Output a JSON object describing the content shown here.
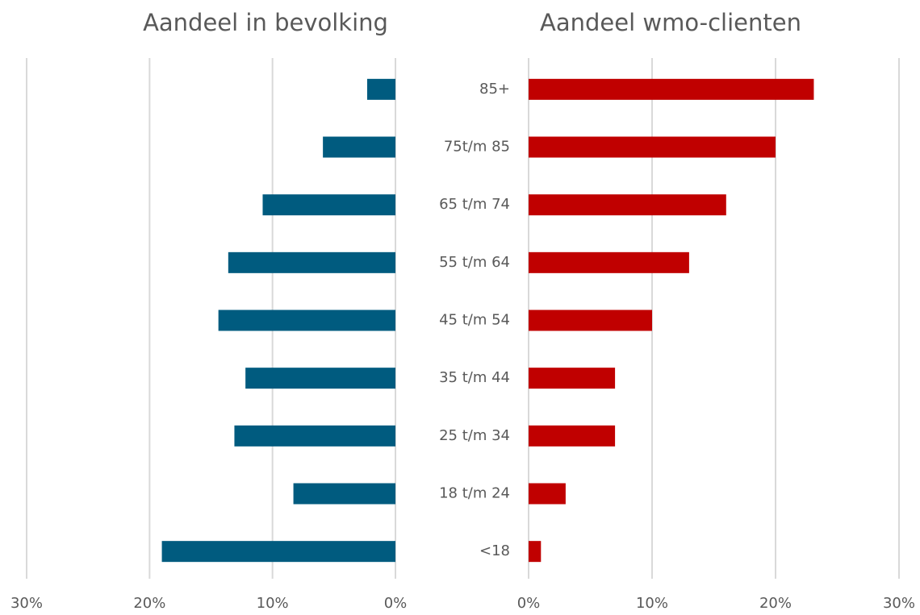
{
  "chart_data": [
    {
      "type": "bar",
      "orientation": "horizontal",
      "title": "Aandeel in bevolking",
      "values": [
        2.3,
        5.9,
        10.8,
        13.6,
        14.4,
        12.2,
        13.1,
        8.3,
        19.0
      ],
      "color": "#005b7f",
      "xlim": [
        30,
        0
      ],
      "xticks": [
        {
          "value": 30,
          "label": "30%"
        },
        {
          "value": 20,
          "label": "20%"
        },
        {
          "value": 10,
          "label": "10%"
        },
        {
          "value": 0,
          "label": "0%"
        }
      ],
      "grid": true
    },
    {
      "type": "bar",
      "orientation": "horizontal",
      "title": "Aandeel wmo-clienten",
      "categories": [
        "85+",
        "75t/m 85",
        "65 t/m 74",
        "55 t/m 64",
        "45 t/m 54",
        "35 t/m 44",
        "25 t/m 34",
        "18 t/m 24",
        "<18"
      ],
      "values": [
        23.1,
        20.0,
        16.0,
        13.0,
        10.0,
        7.0,
        7.0,
        3.0,
        1.0
      ],
      "color": "#c00000",
      "xlim": [
        0,
        30
      ],
      "xticks": [
        {
          "value": 0,
          "label": "0%"
        },
        {
          "value": 10,
          "label": "10%"
        },
        {
          "value": 20,
          "label": "20%"
        },
        {
          "value": 30,
          "label": "30%"
        }
      ],
      "grid": true
    }
  ]
}
